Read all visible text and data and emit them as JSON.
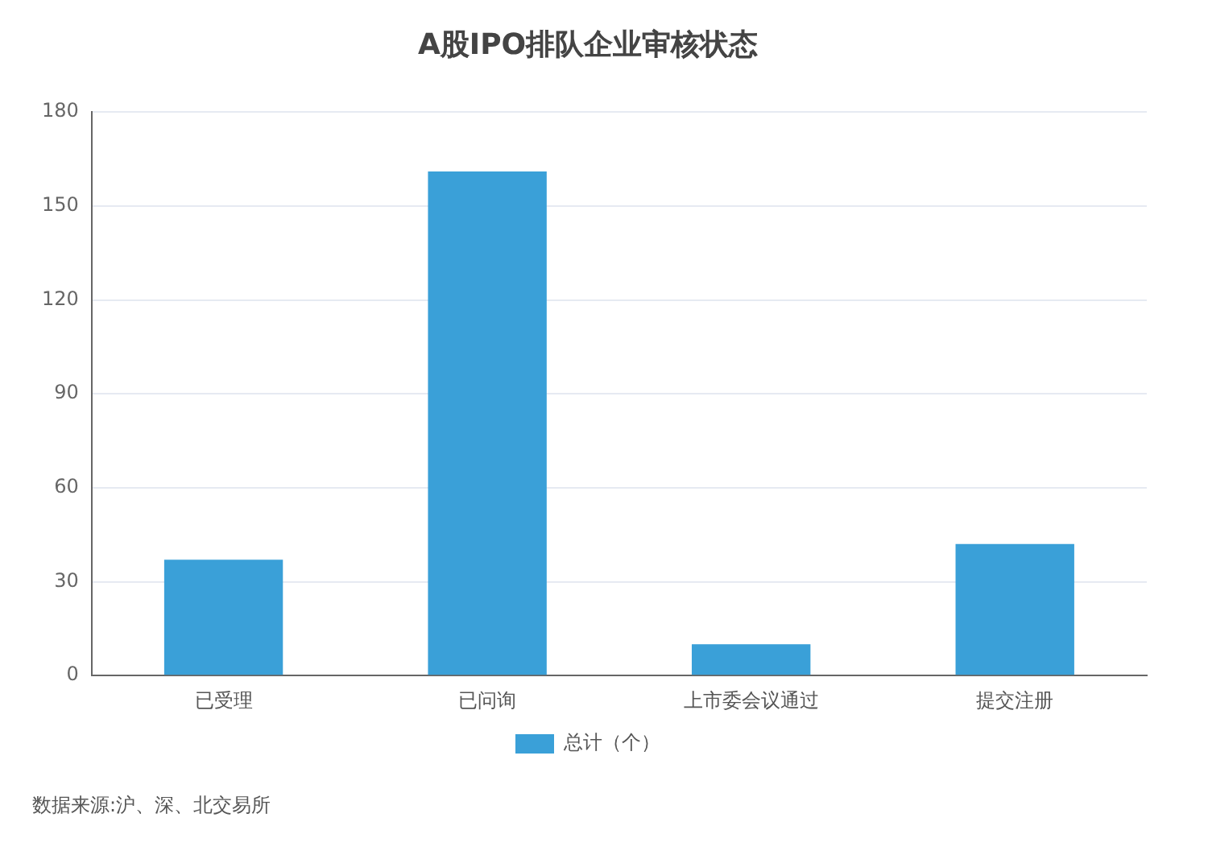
{
  "chart_data": {
    "type": "bar",
    "title": "A股IPO排队企业审核状态",
    "categories": [
      "已受理",
      "已问询",
      "上市委会议通过",
      "提交注册"
    ],
    "series": [
      {
        "name": "总计（个）",
        "color": "#3aa0d8",
        "values": [
          37,
          161,
          10,
          42
        ]
      }
    ],
    "ylim": [
      0,
      180
    ],
    "yticks": [
      0,
      30,
      60,
      90,
      120,
      150,
      180
    ],
    "grid": "y",
    "legend": "bottom",
    "annotations": [
      "数据来源:沪、深、北交易所"
    ]
  }
}
